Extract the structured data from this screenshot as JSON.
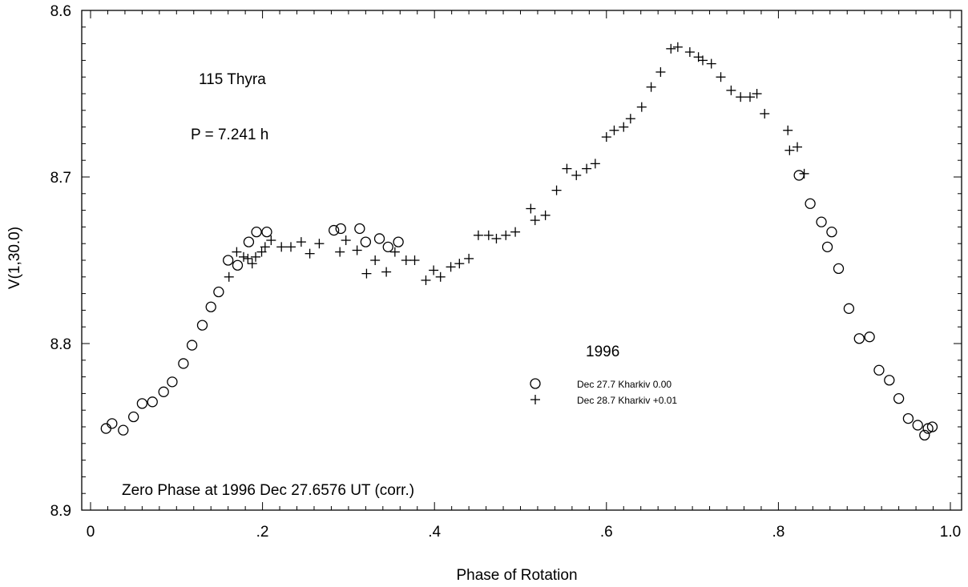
{
  "chart_data": {
    "type": "scatter",
    "title": "",
    "xlabel": "Phase of Rotation",
    "ylabel": "V(1,30.0)",
    "xlim": [
      0,
      1.0
    ],
    "ylim": [
      8.6,
      8.9
    ],
    "y_inverted": true,
    "grid": false,
    "x_ticks": [
      0,
      0.2,
      0.4,
      0.6,
      0.8,
      1.0
    ],
    "x_tick_labels": [
      "0",
      ".2",
      ".4",
      ".6",
      ".8",
      "1.0"
    ],
    "y_ticks": [
      8.6,
      8.7,
      8.8,
      8.9
    ],
    "y_tick_labels": [
      "8.6",
      "8.7",
      "8.8",
      "8.9"
    ],
    "annotations": {
      "object": "115 Thyra",
      "period": "P = 7.241 h",
      "zero_phase": "Zero Phase at 1996 Dec 27.6576 UT (corr.)"
    },
    "legend": {
      "title": "1996",
      "placement": "center-right"
    },
    "series": [
      {
        "name": "Dec 27.7 Kharkiv  0.00",
        "marker": "circle",
        "points": [
          [
            0.018,
            8.851
          ],
          [
            0.025,
            8.848
          ],
          [
            0.038,
            8.852
          ],
          [
            0.05,
            8.844
          ],
          [
            0.06,
            8.836
          ],
          [
            0.072,
            8.835
          ],
          [
            0.085,
            8.829
          ],
          [
            0.095,
            8.823
          ],
          [
            0.108,
            8.812
          ],
          [
            0.118,
            8.801
          ],
          [
            0.13,
            8.789
          ],
          [
            0.14,
            8.778
          ],
          [
            0.149,
            8.769
          ],
          [
            0.16,
            8.75
          ],
          [
            0.171,
            8.753
          ],
          [
            0.184,
            8.739
          ],
          [
            0.193,
            8.733
          ],
          [
            0.205,
            8.733
          ],
          [
            0.283,
            8.732
          ],
          [
            0.291,
            8.731
          ],
          [
            0.313,
            8.731
          ],
          [
            0.32,
            8.739
          ],
          [
            0.336,
            8.737
          ],
          [
            0.346,
            8.742
          ],
          [
            0.358,
            8.739
          ],
          [
            0.824,
            8.699
          ],
          [
            0.837,
            8.716
          ],
          [
            0.85,
            8.727
          ],
          [
            0.857,
            8.742
          ],
          [
            0.862,
            8.733
          ],
          [
            0.87,
            8.755
          ],
          [
            0.882,
            8.779
          ],
          [
            0.894,
            8.797
          ],
          [
            0.906,
            8.796
          ],
          [
            0.917,
            8.816
          ],
          [
            0.929,
            8.822
          ],
          [
            0.94,
            8.833
          ],
          [
            0.951,
            8.845
          ],
          [
            0.962,
            8.849
          ],
          [
            0.97,
            8.855
          ],
          [
            0.974,
            8.851
          ],
          [
            0.979,
            8.85
          ]
        ]
      },
      {
        "name": "Dec 28.7 Kharkiv +0.01",
        "marker": "plus",
        "points": [
          [
            0.161,
            8.76
          ],
          [
            0.17,
            8.745
          ],
          [
            0.178,
            8.748
          ],
          [
            0.183,
            8.749
          ],
          [
            0.188,
            8.752
          ],
          [
            0.192,
            8.748
          ],
          [
            0.199,
            8.745
          ],
          [
            0.203,
            8.742
          ],
          [
            0.21,
            8.738
          ],
          [
            0.222,
            8.742
          ],
          [
            0.233,
            8.742
          ],
          [
            0.245,
            8.739
          ],
          [
            0.255,
            8.746
          ],
          [
            0.266,
            8.74
          ],
          [
            0.29,
            8.745
          ],
          [
            0.297,
            8.738
          ],
          [
            0.31,
            8.744
          ],
          [
            0.321,
            8.758
          ],
          [
            0.331,
            8.75
          ],
          [
            0.344,
            8.757
          ],
          [
            0.354,
            8.745
          ],
          [
            0.367,
            8.75
          ],
          [
            0.377,
            8.75
          ],
          [
            0.39,
            8.762
          ],
          [
            0.399,
            8.756
          ],
          [
            0.407,
            8.76
          ],
          [
            0.419,
            8.754
          ],
          [
            0.429,
            8.752
          ],
          [
            0.44,
            8.749
          ],
          [
            0.451,
            8.735
          ],
          [
            0.463,
            8.735
          ],
          [
            0.472,
            8.737
          ],
          [
            0.483,
            8.735
          ],
          [
            0.494,
            8.733
          ],
          [
            0.512,
            8.719
          ],
          [
            0.517,
            8.726
          ],
          [
            0.529,
            8.723
          ],
          [
            0.542,
            8.708
          ],
          [
            0.554,
            8.695
          ],
          [
            0.565,
            8.699
          ],
          [
            0.577,
            8.695
          ],
          [
            0.587,
            8.692
          ],
          [
            0.6,
            8.676
          ],
          [
            0.609,
            8.672
          ],
          [
            0.62,
            8.67
          ],
          [
            0.628,
            8.665
          ],
          [
            0.641,
            8.658
          ],
          [
            0.652,
            8.646
          ],
          [
            0.663,
            8.637
          ],
          [
            0.675,
            8.623
          ],
          [
            0.683,
            8.622
          ],
          [
            0.697,
            8.625
          ],
          [
            0.707,
            8.628
          ],
          [
            0.712,
            8.63
          ],
          [
            0.722,
            8.632
          ],
          [
            0.733,
            8.64
          ],
          [
            0.745,
            8.648
          ],
          [
            0.756,
            8.652
          ],
          [
            0.767,
            8.652
          ],
          [
            0.775,
            8.65
          ],
          [
            0.784,
            8.662
          ],
          [
            0.811,
            8.672
          ],
          [
            0.813,
            8.684
          ],
          [
            0.822,
            8.682
          ],
          [
            0.83,
            8.698
          ]
        ]
      }
    ]
  }
}
